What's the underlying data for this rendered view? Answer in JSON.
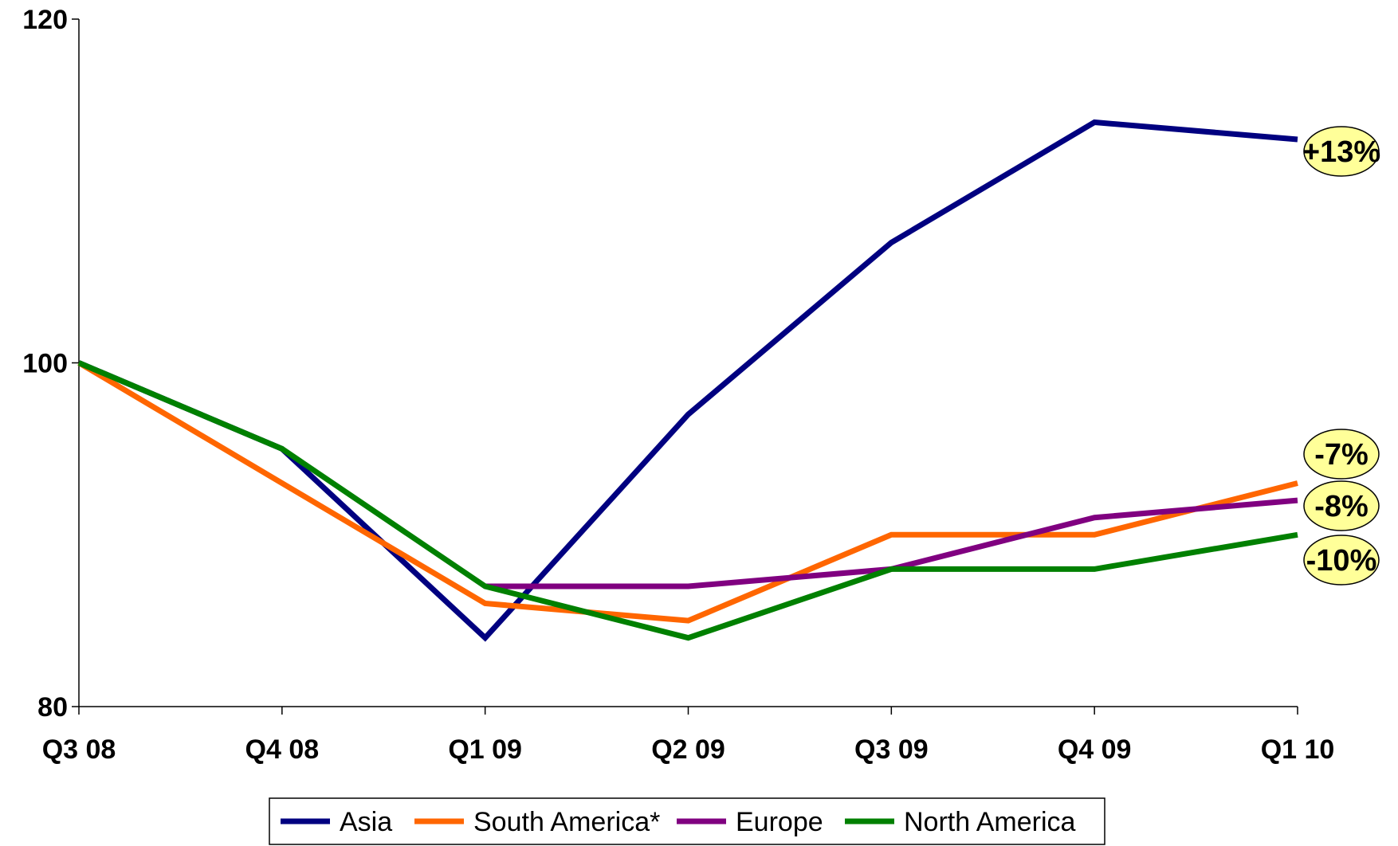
{
  "chart_data": {
    "type": "line",
    "categories": [
      "Q3 08",
      "Q4 08",
      "Q1 09",
      "Q2 09",
      "Q3 09",
      "Q4 09",
      "Q1 10"
    ],
    "y_ticks": [
      "120",
      "100",
      "80"
    ],
    "ylim": [
      80,
      120
    ],
    "grid": false,
    "legend_position": "bottom",
    "series": [
      {
        "name": "Asia",
        "color": "#000080",
        "values": [
          100,
          95,
          84,
          97,
          107,
          114,
          113
        ],
        "callout": "+13%"
      },
      {
        "name": "South America*",
        "color": "#FF6600",
        "values": [
          100,
          93,
          86,
          85,
          90,
          90,
          93
        ],
        "callout": "-7%"
      },
      {
        "name": "Europe",
        "color": "#800080",
        "values": [
          null,
          null,
          87,
          87,
          88,
          91,
          92
        ],
        "callout": "-8%"
      },
      {
        "name": "North America",
        "color": "#008000",
        "values": [
          100,
          95,
          87,
          84,
          88,
          88,
          90
        ],
        "callout": "-10%"
      }
    ],
    "callout_fill": "#FFFF99"
  }
}
